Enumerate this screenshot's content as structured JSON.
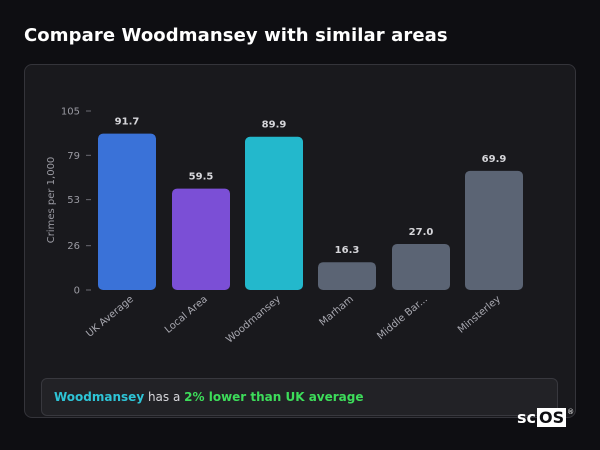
{
  "page": {
    "title": "Compare Woodmansey with similar areas"
  },
  "summary": {
    "area": "Woodmansey",
    "middle": " has a ",
    "delta": "2% lower than UK average"
  },
  "brand": {
    "text": "sc",
    "boxed": "OS",
    "mark": "®"
  },
  "chart_data": {
    "type": "bar",
    "title": "",
    "xlabel": "",
    "ylabel": "Crimes per 1,000",
    "ylim": [
      0,
      105
    ],
    "yticks": [
      0,
      26,
      53,
      79,
      105
    ],
    "grid": false,
    "categories": [
      "UK Average",
      "Local Area",
      "Woodmansey",
      "Marham",
      "Middle Bar...",
      "Minsterley"
    ],
    "values": [
      91.7,
      59.5,
      89.9,
      16.3,
      27.0,
      69.9
    ],
    "value_labels": [
      "91.7",
      "59.5",
      "89.9",
      "16.3",
      "27.0",
      "69.9"
    ],
    "colors": [
      "#3a72d8",
      "#7b4fd6",
      "#23b8cc",
      "#5b6474",
      "#5b6474",
      "#5b6474"
    ]
  }
}
